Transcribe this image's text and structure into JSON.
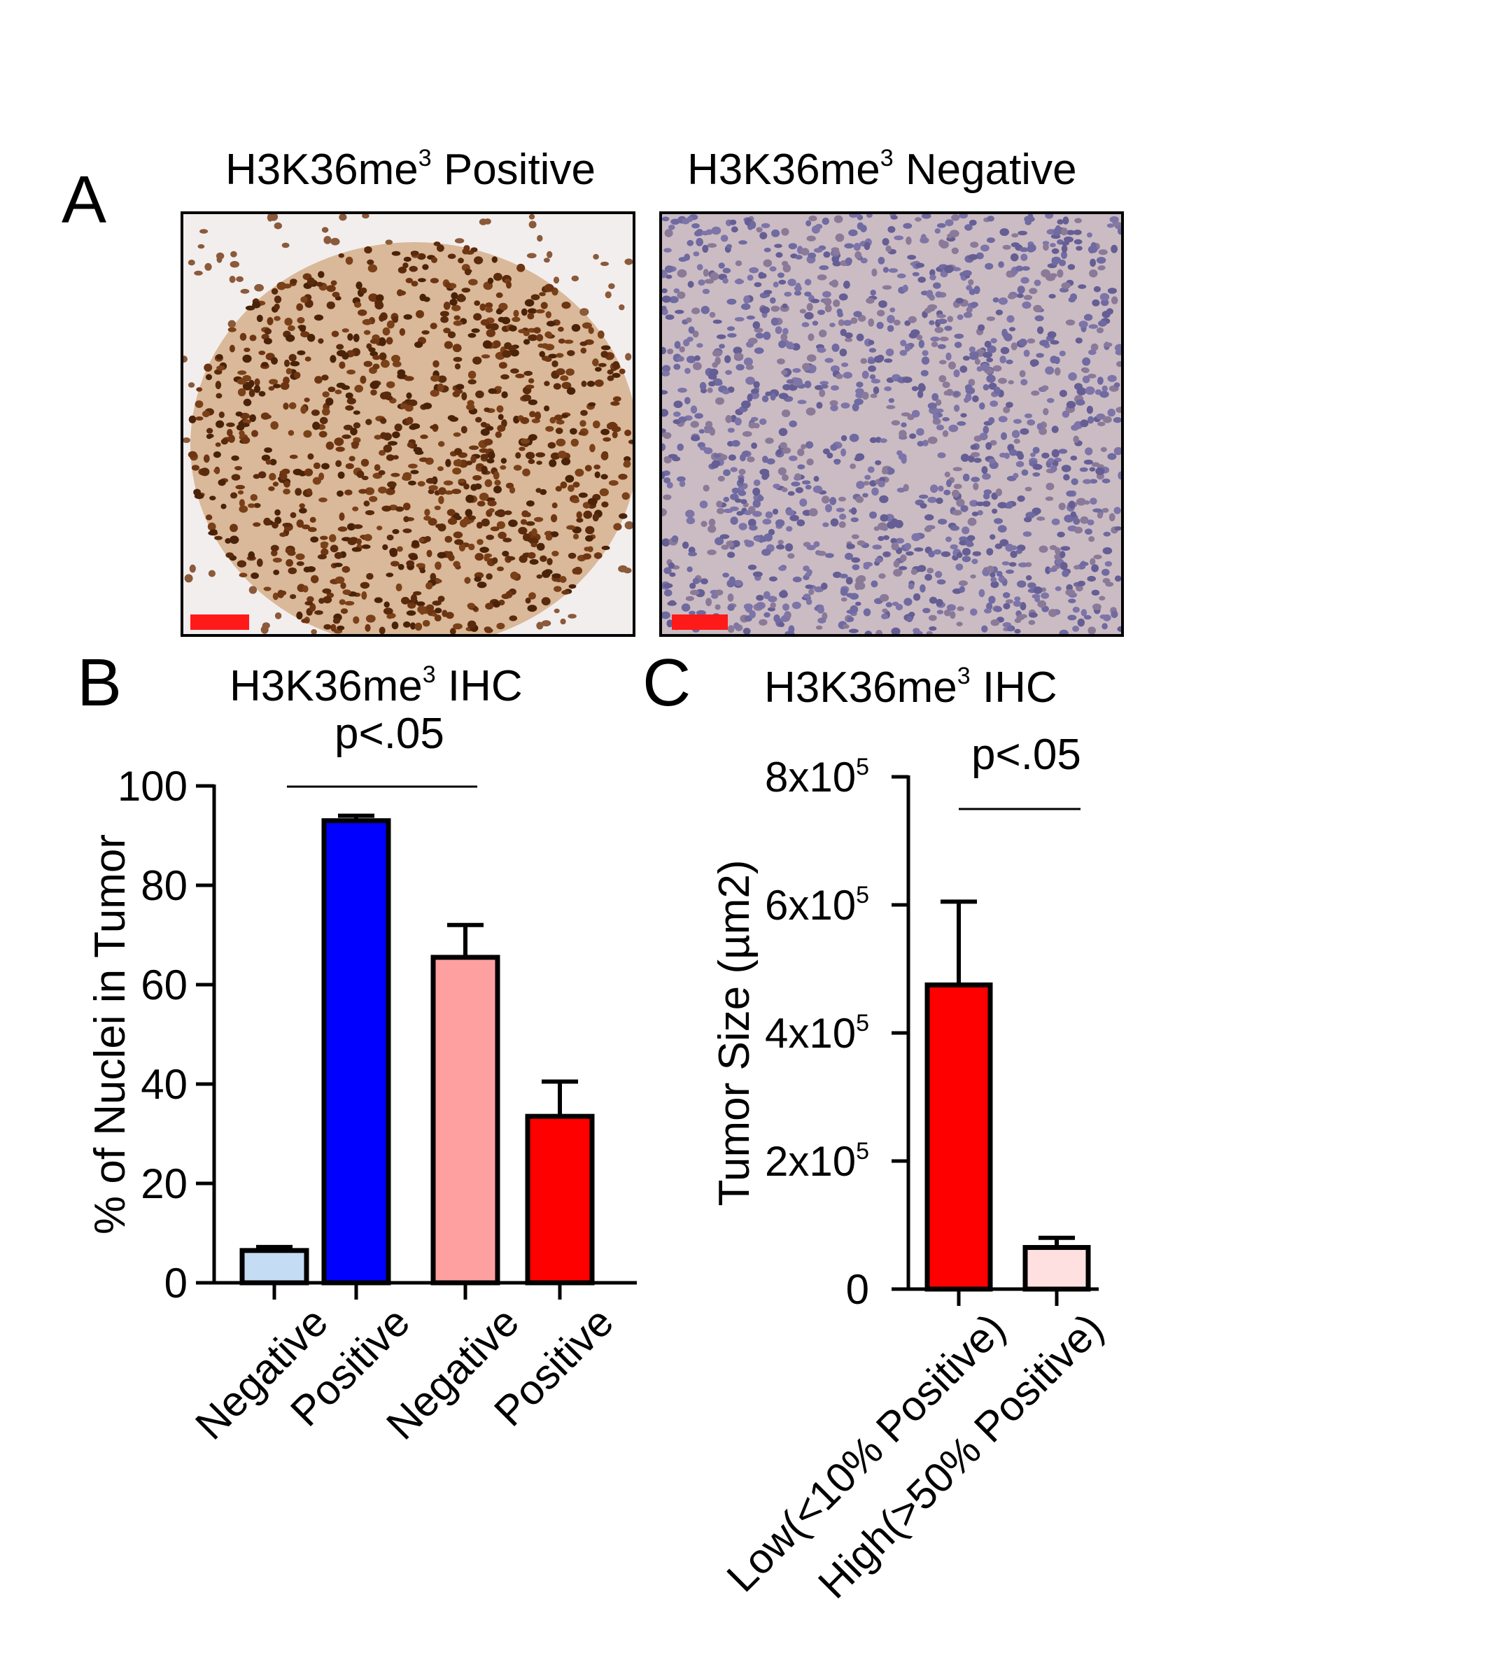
{
  "panel_a": {
    "letter": "A",
    "left_title_pre": "H3K36me",
    "left_title_sup": "3",
    "left_title_post": " Positive",
    "right_title_pre": "H3K36me",
    "right_title_sup": "3",
    "right_title_post": " Negative",
    "colors": {
      "positive_stain": "#8a4a20",
      "negative_stain": "#8a7fb0",
      "scalebar": "#ff1a1a"
    }
  },
  "panel_b": {
    "letter": "B",
    "title_pre": "H3K36me",
    "title_sup": "3",
    "title_post": " IHC",
    "pvalue": "p<.05"
  },
  "panel_c": {
    "letter": "C",
    "title_pre": "H3K36me",
    "title_sup": "3",
    "title_post": " IHC",
    "pvalue": "p<.05"
  },
  "chart_data": [
    {
      "type": "bar",
      "ylabel": "% of Nuclei in Tumor",
      "ylim": [
        0,
        100
      ],
      "yticks": [
        "0",
        "20",
        "40",
        "60",
        "80",
        "100"
      ],
      "categories": [
        "Negative",
        "Positive",
        "Negative",
        "Positive"
      ],
      "values": [
        6.5,
        93,
        65.5,
        33.5
      ],
      "errors": [
        0.7,
        1.0,
        6.5,
        7
      ],
      "colors": [
        "#c5dcf5",
        "#0000ff",
        "#ffa0a0",
        "#ff0000"
      ],
      "significance": {
        "label": "p<.05",
        "from_category": 0,
        "to_category": 2
      }
    },
    {
      "type": "bar",
      "ylabel": "Tumor Size (µm2)",
      "ylim": [
        0,
        800000
      ],
      "yticks": [
        {
          "base": "0",
          "exp": ""
        },
        {
          "base": "2x10",
          "exp": "5"
        },
        {
          "base": "4x10",
          "exp": "5"
        },
        {
          "base": "6x10",
          "exp": "5"
        },
        {
          "base": "8x10",
          "exp": "5"
        }
      ],
      "categories": [
        "Low(<10% Positive)",
        "High(>50% Positive)"
      ],
      "values": [
        475000,
        65000
      ],
      "errors": [
        130000,
        15000
      ],
      "colors": [
        "#ff0000",
        "#ffe0e0"
      ],
      "significance": {
        "label": "p<.05",
        "from_category": 0,
        "to_category": 1
      }
    }
  ]
}
